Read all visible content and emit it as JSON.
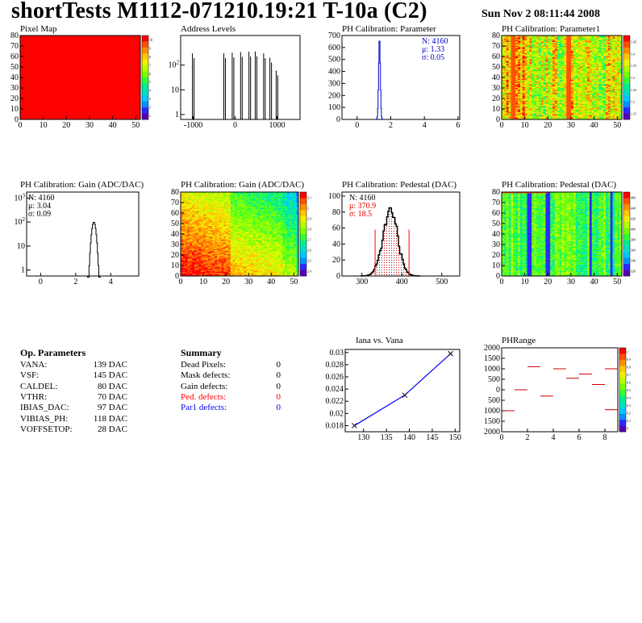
{
  "header": {
    "title": "shortTests M1112-071210.19:21 T-10a (C2)",
    "date": "Sun Nov  2 08:11:44 2008"
  },
  "colors": {
    "red": "#ff0000",
    "blue": "#0000ff",
    "stats_blue": "#0000cc",
    "stats_red": "#dd0000",
    "palette": [
      "#5a00b4",
      "#2a28ff",
      "#0091ff",
      "#00c8ff",
      "#00e0c8",
      "#00f08c",
      "#32ff32",
      "#78ff00",
      "#b4ff00",
      "#f0f000",
      "#ffc800",
      "#ff8c00",
      "#ff5000",
      "#ff0000"
    ]
  },
  "chart_data": [
    {
      "id": "pixel-map",
      "type": "heatmap",
      "title": "Pixel Map",
      "x_ticks": [
        "0",
        "10",
        "20",
        "30",
        "40",
        "50"
      ],
      "y_ticks": [
        "0",
        "10",
        "20",
        "30",
        "40",
        "50",
        "60",
        "70",
        "80"
      ],
      "xlim": [
        0,
        52
      ],
      "ylim": [
        0,
        80
      ],
      "fill": "uniform-max",
      "z_ticks": [
        "10",
        "9",
        "8",
        "7",
        "6",
        "5",
        "4",
        "3",
        "2",
        "1"
      ]
    },
    {
      "id": "address-levels",
      "type": "bar",
      "title": "Address Levels",
      "log_y": true,
      "x_ticks": [
        "-1000",
        "0",
        "1000"
      ],
      "y_ticks": [
        "1",
        "10",
        "10^2"
      ],
      "xlim": [
        -1300,
        1550
      ],
      "peaks_x": [
        -1000,
        -250,
        -50,
        150,
        350,
        500,
        700,
        850,
        1000
      ],
      "peaks_y": [
        300,
        300,
        320,
        340,
        350,
        360,
        300,
        200,
        60
      ]
    },
    {
      "id": "ph-cal-parameter",
      "type": "bar",
      "title": "PH Calibration: Parameter",
      "x_ticks": [
        "0",
        "2",
        "4",
        "6"
      ],
      "y_ticks": [
        "0",
        "100",
        "200",
        "300",
        "400",
        "500",
        "600",
        "700"
      ],
      "xlim": [
        -0.9,
        6.1
      ],
      "ylim": [
        0,
        700
      ],
      "stats": [
        "N: 4160",
        "μ: 1.33",
        "σ: 0.05"
      ],
      "mean": 1.33,
      "sigma": 0.05,
      "peak": 680
    },
    {
      "id": "ph-cal-parameter1",
      "type": "heatmap",
      "title": "PH Calibration: Parameter1",
      "x_ticks": [
        "0",
        "10",
        "20",
        "30",
        "40",
        "50"
      ],
      "y_ticks": [
        "0",
        "10",
        "20",
        "30",
        "40",
        "50",
        "60",
        "70",
        "80"
      ],
      "xlim": [
        0,
        52
      ],
      "ylim": [
        0,
        80
      ],
      "z_ticks": [
        "1.45",
        "1.4",
        "1.35",
        "1.3",
        "1.25",
        "1.2",
        "1.15"
      ]
    },
    {
      "id": "ph-cal-gain-hist",
      "type": "bar",
      "title": "PH Calibration: Gain (ADC/DAC)",
      "log_y": true,
      "x_ticks": [
        "0",
        "2",
        "4"
      ],
      "y_ticks": [
        "1",
        "10",
        "10^2",
        "10^3"
      ],
      "xlim": [
        -0.8,
        5.6
      ],
      "stats": [
        "N: 4160",
        "μ: 3.04",
        "σ: 0.09"
      ],
      "mean": 3.04,
      "sigma": 0.09,
      "peak": 100
    },
    {
      "id": "ph-cal-gain-map",
      "type": "heatmap",
      "title": "PH Calibration: Gain (ADC/DAC)",
      "x_ticks": [
        "0",
        "10",
        "20",
        "30",
        "40",
        "50"
      ],
      "y_ticks": [
        "0",
        "10",
        "20",
        "30",
        "40",
        "50",
        "60",
        "70",
        "80"
      ],
      "xlim": [
        0,
        52
      ],
      "ylim": [
        0,
        80
      ],
      "z_ticks": [
        "3.1",
        "3",
        "2.9",
        "2.8",
        "2.7",
        "2.6",
        "2.5",
        "2.4"
      ]
    },
    {
      "id": "ph-cal-pedestal-hist",
      "type": "bar",
      "title": "PH Calibration: Pedestal (DAC)",
      "x_ticks": [
        "300",
        "400",
        "500"
      ],
      "y_ticks": [
        "0",
        "20",
        "40",
        "60",
        "80",
        "100"
      ],
      "xlim": [
        250,
        545
      ],
      "ylim": [
        0,
        105
      ],
      "stats": [
        "N: 4160",
        "μ: 370.9",
        "σ: 18.5"
      ],
      "mean": 370.9,
      "sigma": 18.5,
      "peak": 80,
      "cut_lines": [
        333,
        418
      ]
    },
    {
      "id": "ph-cal-pedestal-map",
      "type": "heatmap",
      "title": "PH Calibration: Pedestal (DAC)",
      "x_ticks": [
        "0",
        "10",
        "20",
        "30",
        "40",
        "50"
      ],
      "y_ticks": [
        "0",
        "10",
        "20",
        "30",
        "40",
        "50",
        "60",
        "70",
        "80"
      ],
      "xlim": [
        0,
        52
      ],
      "ylim": [
        0,
        80
      ],
      "z_ticks": [
        "460",
        "440",
        "420",
        "400",
        "380",
        "360",
        "340",
        "320"
      ]
    },
    {
      "id": "iana-vs-vana",
      "type": "line",
      "title": "Iana vs. Vana",
      "x": [
        128,
        139,
        149
      ],
      "y": [
        0.018,
        0.023,
        0.0298
      ],
      "x_ticks": [
        "130",
        "135",
        "140",
        "145",
        "150"
      ],
      "y_ticks": [
        "0.018",
        "0.02",
        "0.022",
        "0.024",
        "0.026",
        "0.028",
        "0.03"
      ],
      "xlim": [
        126,
        151
      ],
      "ylim": [
        0.017,
        0.0305
      ]
    },
    {
      "id": "ph-range",
      "type": "scatter",
      "title": "PHRange",
      "x": [
        0.5,
        1.5,
        2.5,
        3.5,
        4.5,
        5.5,
        6.5,
        7.5,
        8.5
      ],
      "y": [
        -1000,
        0,
        1100,
        -300,
        1000,
        550,
        750,
        250,
        1000
      ],
      "extra_segment": {
        "x": 8.5,
        "y": -950
      },
      "x_ticks": [
        "0",
        "2",
        "4",
        "6",
        "8"
      ],
      "y_ticks": [
        "2000",
        "1500",
        "1000",
        "500",
        "0",
        "500",
        "1000",
        "1500",
        "2000"
      ],
      "xlim": [
        0,
        9
      ],
      "ylim": [
        -2000,
        2000
      ],
      "z_ticks": [
        "1",
        "0.9",
        "0.8",
        "0.7",
        "0.6",
        "0.5",
        "0.4",
        "0.3",
        "0.2",
        "0.1",
        "0"
      ]
    }
  ],
  "op_params": {
    "title": "Op. Parameters",
    "items": [
      {
        "label": "VANA:",
        "value": "139 DAC"
      },
      {
        "label": "VSF:",
        "value": "145 DAC"
      },
      {
        "label": "CALDEL:",
        "value": "80 DAC"
      },
      {
        "label": "VTHR:",
        "value": "70 DAC"
      },
      {
        "label": "IBIAS_DAC:",
        "value": "97 DAC"
      },
      {
        "label": "VIBIAS_PH:",
        "value": "118 DAC"
      },
      {
        "label": "VOFFSETOP:",
        "value": "28 DAC"
      }
    ]
  },
  "summary": {
    "title": "Summary",
    "items": [
      {
        "label": "Dead Pixels:",
        "value": "0",
        "color": "#000000"
      },
      {
        "label": "Mask defects:",
        "value": "0",
        "color": "#000000"
      },
      {
        "label": "Gain defects:",
        "value": "0",
        "color": "#000000"
      },
      {
        "label": "Ped. defects:",
        "value": "0",
        "color": "#ff0000"
      },
      {
        "label": "Par1 defects:",
        "value": "0",
        "color": "#0000ff"
      }
    ]
  }
}
